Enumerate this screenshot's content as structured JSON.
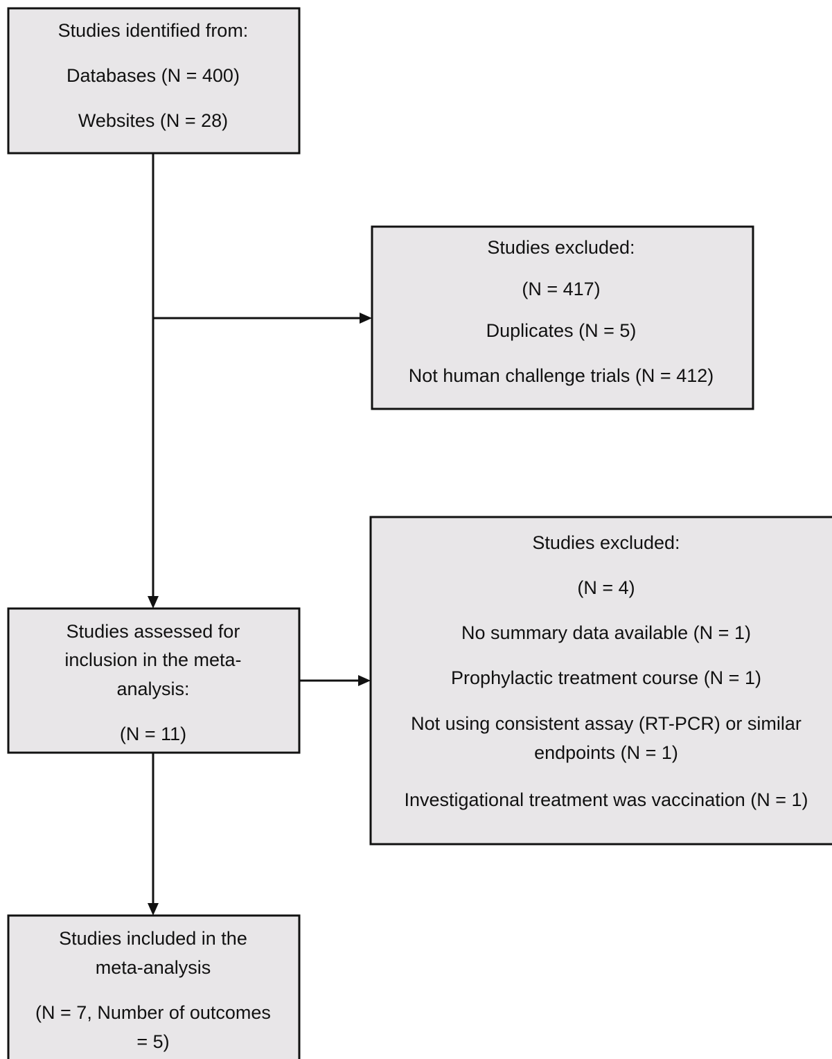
{
  "nodes": [
    {
      "lines": [
        "Studies identified from:",
        "Databases (N = 400)",
        "Websites (N = 28)"
      ]
    },
    {
      "lines": [
        "Studies excluded:",
        "(N = 417)",
        "Duplicates (N = 5)",
        "Not human challenge trials (N = 412)"
      ]
    },
    {
      "lines": [
        "Studies excluded:",
        "(N = 4)",
        "No summary data available (N = 1)",
        "Prophylactic treatment course (N = 1)",
        "Not using consistent assay (RT-PCR) or similar",
        "endpoints (N = 1)",
        "Investigational treatment was vaccination (N = 1)"
      ]
    },
    {
      "lines": [
        "Studies assessed for",
        "inclusion in the meta-",
        "analysis:",
        "(N = 11)"
      ]
    },
    {
      "lines": [
        "Studies included in the",
        "meta-analysis",
        "(N = 7, Number of outcomes",
        "= 5)"
      ]
    }
  ]
}
